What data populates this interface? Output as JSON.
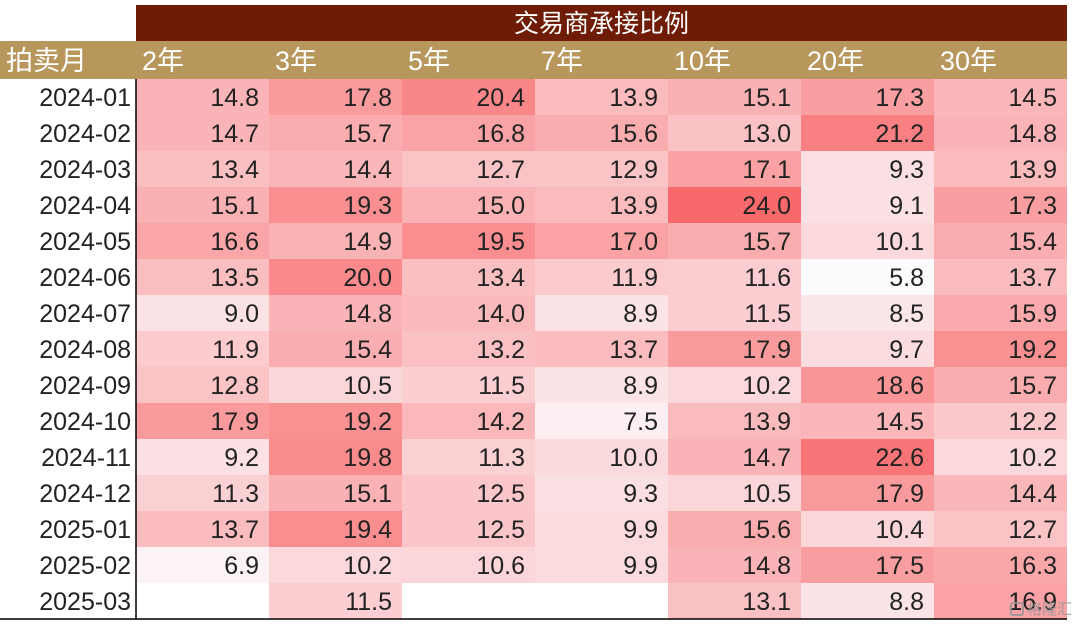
{
  "chart_data": {
    "type": "heatmap",
    "title": "交易商承接比例",
    "row_header": "拍卖月",
    "columns": [
      "2年",
      "3年",
      "5年",
      "7年",
      "10年",
      "20年",
      "30年"
    ],
    "rows": [
      "2024-01",
      "2024-02",
      "2024-03",
      "2024-04",
      "2024-05",
      "2024-06",
      "2024-07",
      "2024-08",
      "2024-09",
      "2024-10",
      "2024-11",
      "2024-12",
      "2025-01",
      "2025-02",
      "2025-03"
    ],
    "values": [
      [
        14.8,
        17.8,
        20.4,
        13.9,
        15.1,
        17.3,
        14.5
      ],
      [
        14.7,
        15.7,
        16.8,
        15.6,
        13.0,
        21.2,
        14.8
      ],
      [
        13.4,
        14.4,
        12.7,
        12.9,
        17.1,
        9.3,
        13.9
      ],
      [
        15.1,
        19.3,
        15.0,
        13.9,
        24.0,
        9.1,
        17.3
      ],
      [
        16.6,
        14.9,
        19.5,
        17.0,
        15.7,
        10.1,
        15.4
      ],
      [
        13.5,
        20.0,
        13.4,
        11.9,
        11.6,
        5.8,
        13.7
      ],
      [
        9.0,
        14.8,
        14.0,
        8.9,
        11.5,
        8.5,
        15.9
      ],
      [
        11.9,
        15.4,
        13.2,
        13.7,
        17.9,
        9.7,
        19.2
      ],
      [
        12.8,
        10.5,
        11.5,
        8.9,
        10.2,
        18.6,
        15.7
      ],
      [
        17.9,
        19.2,
        14.2,
        7.5,
        13.9,
        14.5,
        12.2
      ],
      [
        9.2,
        19.8,
        11.3,
        10.0,
        14.7,
        22.6,
        10.2
      ],
      [
        11.3,
        15.1,
        12.5,
        9.3,
        10.5,
        17.9,
        14.4
      ],
      [
        13.7,
        19.4,
        12.5,
        9.9,
        15.6,
        10.4,
        12.7
      ],
      [
        6.9,
        10.2,
        10.6,
        9.9,
        14.8,
        17.5,
        16.3
      ],
      [
        null,
        11.5,
        null,
        null,
        13.1,
        8.8,
        16.9
      ]
    ],
    "colors": {
      "title_bg": "#6e1c05",
      "header_bg": "#b8975c",
      "high": "#f8696b",
      "low": "#fcfcff"
    },
    "scale": {
      "min": 5.8,
      "max": 24.0
    }
  },
  "watermark": {
    "text": "格隆汇"
  }
}
